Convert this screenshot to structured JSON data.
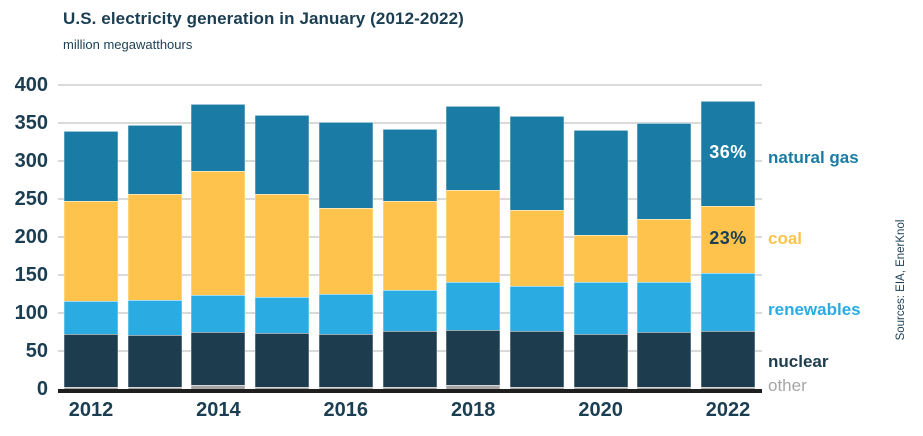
{
  "title": "U.S. electricity generation in January (2012-2022)",
  "subtitle": "million megawatthours",
  "source_note": "Sources: EIA, EnerKnol",
  "colors": {
    "natural_gas": "#1a7ca4",
    "coal": "#fdc34c",
    "renewables": "#2aace2",
    "nuclear": "#1d3d4f",
    "other": "#a6a6a6",
    "text": "#1b3e52",
    "gridline": "#dadada",
    "axis_line": "#1f1f1f",
    "annotation_light": "#ffffff",
    "annotation_dark": "#1b3e52"
  },
  "chart_data": {
    "type": "bar",
    "stacked": true,
    "title": "U.S. electricity generation in January (2012-2022)",
    "unit": "million megawatthours",
    "categories": [
      2012,
      2013,
      2014,
      2015,
      2016,
      2017,
      2018,
      2019,
      2020,
      2021,
      2022
    ],
    "x_tick_labels": [
      "2012",
      "2014",
      "2016",
      "2018",
      "2020",
      "2022"
    ],
    "y_ticks": [
      0,
      50,
      100,
      150,
      200,
      250,
      300,
      350,
      400
    ],
    "ylim": [
      0,
      400
    ],
    "grid": true,
    "series": [
      {
        "name": "other",
        "color_key": "other",
        "values": [
          2,
          2,
          5,
          2,
          2,
          2,
          5,
          2,
          2,
          2,
          3
        ]
      },
      {
        "name": "nuclear",
        "color_key": "nuclear",
        "values": [
          71,
          69,
          70,
          72,
          71,
          74,
          73,
          74,
          71,
          73,
          73
        ]
      },
      {
        "name": "renewables",
        "color_key": "renewables",
        "values": [
          43,
          46,
          49,
          47,
          52,
          54,
          63,
          60,
          68,
          66,
          77
        ]
      },
      {
        "name": "coal",
        "color_key": "coal",
        "values": [
          131,
          139,
          163,
          136,
          113,
          117,
          121,
          100,
          62,
          83,
          88
        ]
      },
      {
        "name": "natural gas",
        "color_key": "natural_gas",
        "values": [
          92,
          91,
          88,
          103,
          114,
          95,
          110,
          123,
          138,
          126,
          138
        ]
      }
    ],
    "totals": [
      339,
      347,
      375,
      360,
      352,
      342,
      372,
      359,
      341,
      350,
      379
    ],
    "annotations": [
      {
        "text": "36%",
        "year": 2022,
        "series": "natural gas",
        "color_key": "annotation_light"
      },
      {
        "text": "23%",
        "year": 2022,
        "series": "coal",
        "color_key": "annotation_dark"
      }
    ],
    "legend_position": "right",
    "legend": [
      {
        "label": "natural gas",
        "color_key": "natural_gas"
      },
      {
        "label": "coal",
        "color_key": "coal"
      },
      {
        "label": "renewables",
        "color_key": "renewables"
      },
      {
        "label": "nuclear",
        "color_key": "nuclear"
      },
      {
        "label": "other",
        "color_key": "other"
      }
    ]
  }
}
